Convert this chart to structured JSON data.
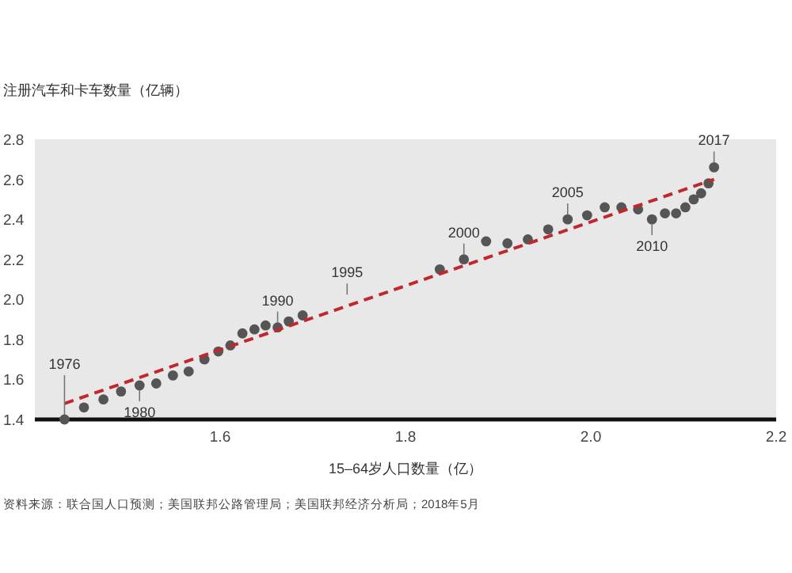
{
  "chart_data": {
    "type": "scatter",
    "xlabel": "15–64岁人口数量（亿）",
    "ylabel": "注册汽车和卡车数量（亿辆）",
    "xlim": [
      1.4,
      2.2
    ],
    "xticks": [
      1.6,
      1.8,
      {
        "value": 2,
        "label": "2.0"
      },
      2.2
    ],
    "ylim": [
      1.4,
      2.8
    ],
    "yticks": [
      1.4,
      1.6,
      1.8,
      {
        "value": 2,
        "label": "2.0"
      },
      2.2,
      2.4,
      2.6,
      2.8
    ],
    "grid": false,
    "marker": "circle",
    "series": [
      {
        "color": "#555555",
        "x": [
          1.432,
          1.453,
          1.474,
          1.493,
          1.513,
          1.531,
          1.549,
          1.566,
          1.583,
          1.598,
          1.611,
          1.624,
          1.637,
          1.649,
          1.662,
          1.674,
          1.689,
          1.837,
          1.863,
          1.887,
          1.91,
          1.932,
          1.954,
          1.975,
          1.996,
          2.015,
          2.033,
          2.051,
          2.066,
          2.08,
          2.092,
          2.102,
          2.111,
          2.119,
          2.127,
          2.133
        ],
        "values": [
          1.4,
          1.46,
          1.5,
          1.54,
          1.57,
          1.58,
          1.62,
          1.64,
          1.7,
          1.74,
          1.77,
          1.83,
          1.85,
          1.87,
          1.86,
          1.89,
          1.92,
          2.15,
          2.2,
          2.29,
          2.28,
          2.3,
          2.35,
          2.4,
          2.42,
          2.46,
          2.46,
          2.45,
          2.4,
          2.43,
          2.43,
          2.46,
          2.5,
          2.53,
          2.58,
          2.66
        ]
      },
      {
        "type": "line",
        "color": "#c0282d",
        "line_style": "dashed",
        "marker": "none",
        "x": [
          1.432,
          2.133
        ],
        "values": [
          1.48,
          2.6
        ]
      }
    ],
    "annotations": [
      {
        "text": "1976",
        "x": 1.432,
        "y": 1.4
      },
      {
        "text": "1980",
        "x": 1.513,
        "y": 1.57
      },
      {
        "text": "1990",
        "x": 1.662,
        "y": 1.86
      },
      {
        "text": "1995",
        "x": 1.737,
        "y": 2.0
      },
      {
        "text": "2000",
        "x": 1.863,
        "y": 2.2
      },
      {
        "text": "2005",
        "x": 1.975,
        "y": 2.4
      },
      {
        "text": "2010",
        "x": 2.066,
        "y": 2.4
      },
      {
        "text": "2017",
        "x": 2.133,
        "y": 2.66
      },
      "资料来源：联合国人口预测；美国联邦公路管理局；美国联邦经济分析局；2018年5月"
    ]
  }
}
